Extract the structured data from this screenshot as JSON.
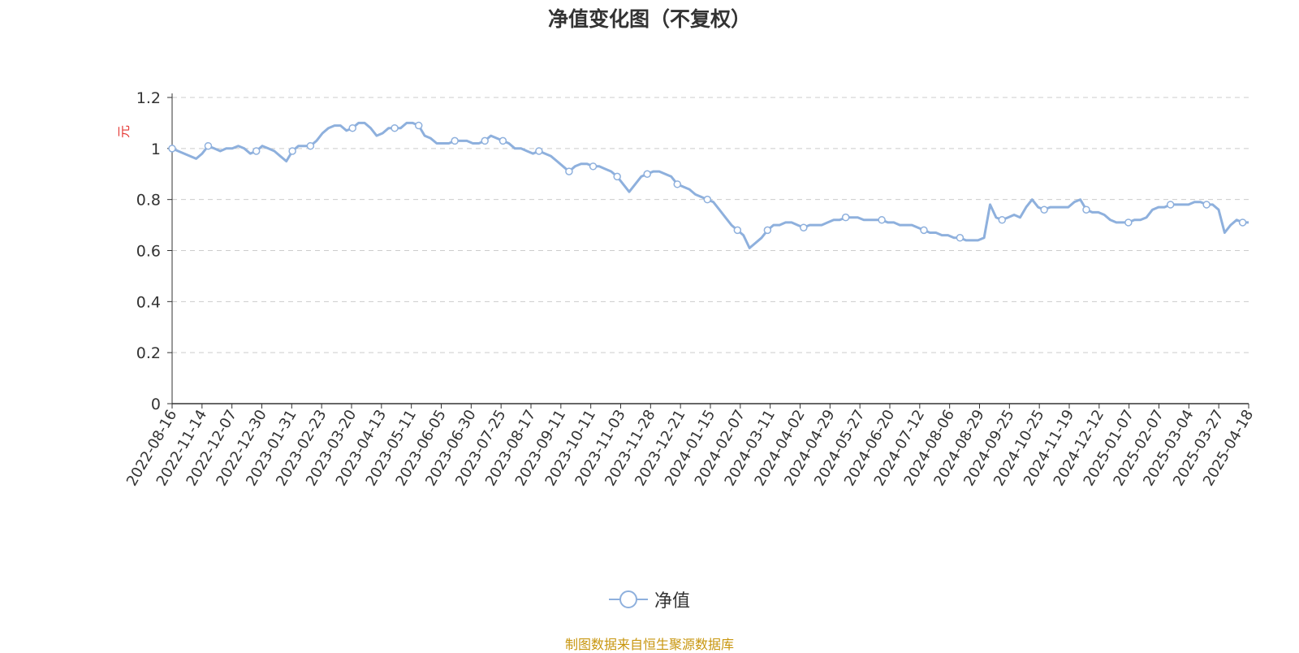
{
  "chart_data": {
    "type": "line",
    "title": "净值变化图（不复权）",
    "ylabel": "元",
    "xlabel": "",
    "ylim": [
      0,
      1.2
    ],
    "y_ticks": [
      "0",
      "0.2",
      "0.4",
      "0.6",
      "0.8",
      "1",
      "1.2"
    ],
    "grid": true,
    "legend_position": "bottom-center",
    "x_tick_labels": [
      "2022-08-16",
      "2022-11-14",
      "2022-12-07",
      "2022-12-30",
      "2023-01-31",
      "2023-02-23",
      "2023-03-20",
      "2023-04-13",
      "2023-05-11",
      "2023-06-05",
      "2023-06-30",
      "2023-07-25",
      "2023-08-17",
      "2023-09-11",
      "2023-10-11",
      "2023-11-03",
      "2023-11-28",
      "2023-12-21",
      "2024-01-15",
      "2024-02-07",
      "2024-03-11",
      "2024-04-02",
      "2024-04-29",
      "2024-05-27",
      "2024-06-20",
      "2024-07-12",
      "2024-08-06",
      "2024-08-29",
      "2024-09-25",
      "2024-10-25",
      "2024-11-19",
      "2024-12-12",
      "2025-01-07",
      "2025-02-07",
      "2025-03-04",
      "2025-03-27",
      "2025-04-18"
    ],
    "series": [
      {
        "name": "净值",
        "color": "#8eb0dd",
        "values": [
          1.0,
          0.99,
          0.98,
          0.97,
          0.96,
          0.98,
          1.01,
          1.0,
          0.99,
          1.0,
          1.0,
          1.01,
          1.0,
          0.98,
          0.99,
          1.01,
          1.0,
          0.99,
          0.97,
          0.95,
          0.99,
          1.01,
          1.01,
          1.01,
          1.03,
          1.06,
          1.08,
          1.09,
          1.09,
          1.07,
          1.08,
          1.1,
          1.1,
          1.08,
          1.05,
          1.06,
          1.08,
          1.08,
          1.08,
          1.1,
          1.1,
          1.09,
          1.05,
          1.04,
          1.02,
          1.02,
          1.02,
          1.03,
          1.03,
          1.03,
          1.02,
          1.02,
          1.03,
          1.05,
          1.04,
          1.03,
          1.02,
          1.0,
          1.0,
          0.99,
          0.98,
          0.99,
          0.98,
          0.97,
          0.95,
          0.93,
          0.91,
          0.93,
          0.94,
          0.94,
          0.93,
          0.93,
          0.92,
          0.91,
          0.89,
          0.86,
          0.83,
          0.86,
          0.89,
          0.9,
          0.91,
          0.91,
          0.9,
          0.89,
          0.86,
          0.85,
          0.84,
          0.82,
          0.81,
          0.8,
          0.79,
          0.76,
          0.73,
          0.7,
          0.68,
          0.66,
          0.61,
          0.63,
          0.65,
          0.68,
          0.7,
          0.7,
          0.71,
          0.71,
          0.7,
          0.69,
          0.7,
          0.7,
          0.7,
          0.71,
          0.72,
          0.72,
          0.73,
          0.73,
          0.73,
          0.72,
          0.72,
          0.72,
          0.72,
          0.71,
          0.71,
          0.7,
          0.7,
          0.7,
          0.69,
          0.68,
          0.67,
          0.67,
          0.66,
          0.66,
          0.65,
          0.65,
          0.64,
          0.64,
          0.64,
          0.65,
          0.78,
          0.73,
          0.72,
          0.73,
          0.74,
          0.73,
          0.77,
          0.8,
          0.77,
          0.76,
          0.77,
          0.77,
          0.77,
          0.77,
          0.79,
          0.8,
          0.76,
          0.75,
          0.75,
          0.74,
          0.72,
          0.71,
          0.71,
          0.71,
          0.72,
          0.72,
          0.73,
          0.76,
          0.77,
          0.77,
          0.78,
          0.78,
          0.78,
          0.78,
          0.79,
          0.79,
          0.78,
          0.78,
          0.76,
          0.67,
          0.7,
          0.72,
          0.71,
          0.71
        ],
        "markers": [
          0,
          6,
          14,
          20,
          23,
          30,
          37,
          41,
          47,
          52,
          55,
          61,
          66,
          70,
          74,
          79,
          84,
          89,
          94,
          99,
          105,
          112,
          118,
          125,
          131,
          138,
          145,
          152,
          159,
          166,
          172,
          178,
          184,
          189,
          193,
          198
        ]
      }
    ]
  },
  "legend": {
    "label": "净值"
  },
  "footer": {
    "source": "制图数据来自恒生聚源数据库"
  }
}
